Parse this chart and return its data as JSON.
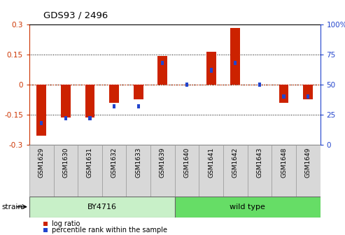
{
  "title": "GDS93 / 2496",
  "samples": [
    "GSM1629",
    "GSM1630",
    "GSM1631",
    "GSM1632",
    "GSM1633",
    "GSM1639",
    "GSM1640",
    "GSM1641",
    "GSM1642",
    "GSM1643",
    "GSM1648",
    "GSM1649"
  ],
  "log_ratio": [
    -0.255,
    -0.165,
    -0.165,
    -0.09,
    -0.075,
    0.145,
    0.0,
    0.165,
    0.285,
    0.0,
    -0.09,
    -0.075
  ],
  "percentile": [
    18,
    22,
    22,
    32,
    32,
    68,
    50,
    62,
    68,
    50,
    40,
    40
  ],
  "groups": [
    {
      "label": "BY4716",
      "start": 0,
      "end": 5,
      "color": "#c8f0c8"
    },
    {
      "label": "wild type",
      "start": 6,
      "end": 11,
      "color": "#66dd66"
    }
  ],
  "ylim_left": [
    -0.3,
    0.3
  ],
  "ylim_right": [
    0,
    100
  ],
  "yticks_left": [
    -0.3,
    -0.15,
    0.0,
    0.15,
    0.3
  ],
  "ytick_labels_left": [
    "-0.3",
    "-0.15",
    "0",
    "0.15",
    "0.3"
  ],
  "yticks_right": [
    0,
    25,
    50,
    75,
    100
  ],
  "ytick_labels_right": [
    "0",
    "25",
    "50",
    "75",
    "100%"
  ],
  "bar_color_red": "#cc2200",
  "bar_color_blue": "#2244cc",
  "tick_label_color_left": "#cc3300",
  "tick_label_color_right": "#2244cc",
  "zero_line_color": "#cc3300",
  "bar_width": 0.4,
  "blue_square_size": 0.12,
  "legend_items": [
    "log ratio",
    "percentile rank within the sample"
  ],
  "strain_label": "strain",
  "label_box_color": "#d8d8d8",
  "label_box_edge": "#999999"
}
